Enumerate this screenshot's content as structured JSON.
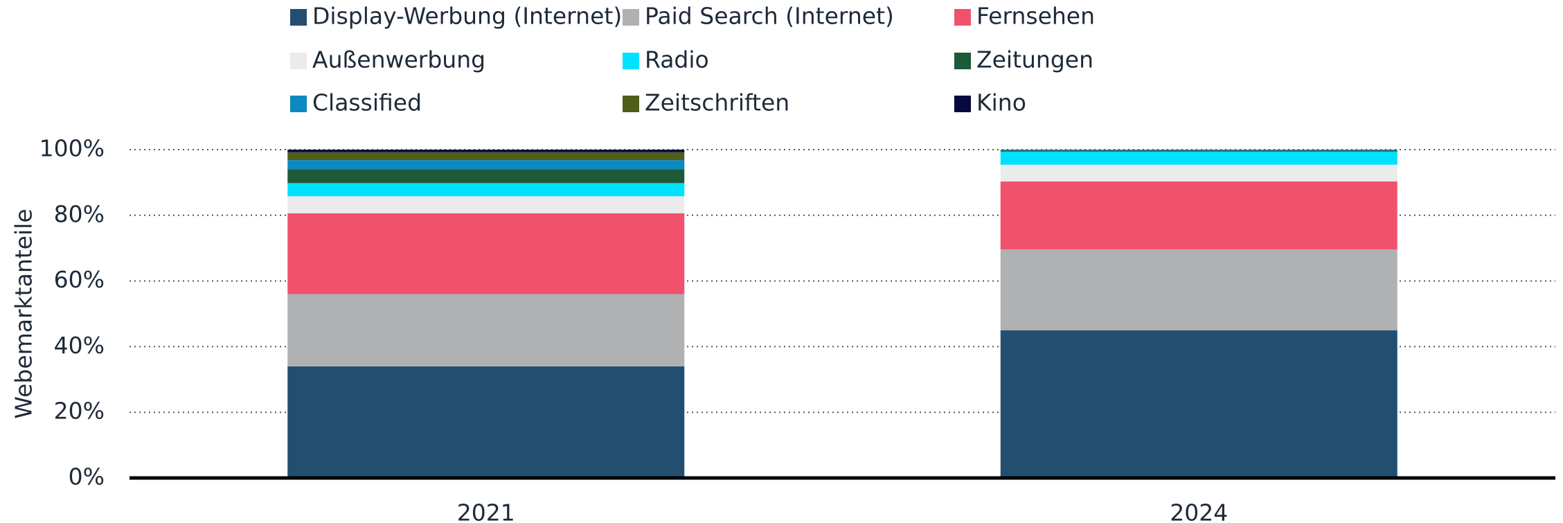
{
  "chart_data": {
    "type": "stacked_bar",
    "ylabel": "Webemarktanteile",
    "categories": [
      "2021",
      "2024"
    ],
    "series": [
      {
        "name": "Display-Werbung (Internet)",
        "color": "#234e70",
        "values": [
          34,
          45
        ]
      },
      {
        "name": "Paid Search (Internet)",
        "color": "#b0b1b3",
        "values": [
          22,
          24.6
        ]
      },
      {
        "name": "Fernsehen",
        "color": "#f0526d",
        "values": [
          24.6,
          20.7
        ]
      },
      {
        "name": "Außenwerbung",
        "color": "#ebebeb",
        "values": [
          5.2,
          5.1
        ]
      },
      {
        "name": "Radio",
        "color": "#00e1ff",
        "values": [
          4,
          4
        ]
      },
      {
        "name": "Zeitungen",
        "color": "#1c5a38",
        "values": [
          4.2,
          0.3
        ]
      },
      {
        "name": "Classified",
        "color": "#0a8ac0",
        "values": [
          2.8,
          0.2
        ]
      },
      {
        "name": "Zeitschriften",
        "color": "#4f5e1a",
        "values": [
          2.4,
          0.1
        ]
      },
      {
        "name": "Kino",
        "color": "#060a40",
        "values": [
          0.8,
          0
        ]
      }
    ],
    "ylim": [
      0,
      100
    ],
    "yticks": [
      {
        "value": 0,
        "label": "0%"
      },
      {
        "value": 20,
        "label": "20%"
      },
      {
        "value": 40,
        "label": "40%"
      },
      {
        "value": 60,
        "label": "60%"
      },
      {
        "value": 80,
        "label": "80%"
      },
      {
        "value": 100,
        "label": "100%"
      }
    ],
    "grid": true,
    "legend": "top"
  }
}
